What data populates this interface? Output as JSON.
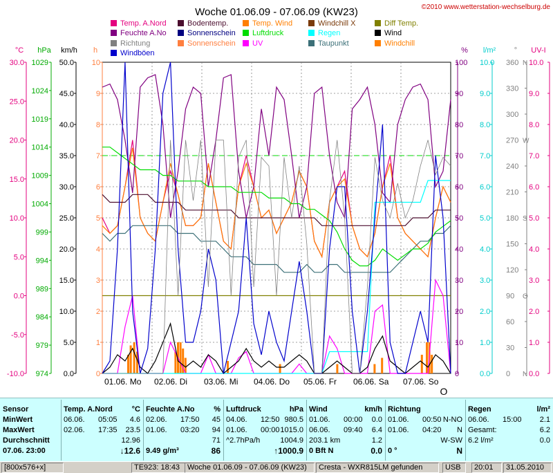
{
  "chart": {
    "title": "Woche 01.06.09 - 07.06.09 (KW23)",
    "copyright": "©2010 www.wetterstation-wechselburg.de",
    "cursor_symbol": "O",
    "legend": [
      {
        "label": "Temp. A.Nord",
        "color": "#e4007f"
      },
      {
        "label": "Bodentemp.",
        "color": "#4b0d2e"
      },
      {
        "label": "Temp. Wind",
        "color": "#ff7f00"
      },
      {
        "label": "Windchill X",
        "color": "#7a3a0a"
      },
      {
        "label": "Diff Temp.",
        "color": "#808000"
      },
      {
        "label": "Feuchte A.No",
        "color": "#800080"
      },
      {
        "label": "Sonnenschein",
        "color": "#000080"
      },
      {
        "label": "Luftdruck",
        "color": "#00dd00"
      },
      {
        "label": "Regen",
        "color": "#00ffff"
      },
      {
        "label": "Wind",
        "color": "#000000"
      },
      {
        "label": "Richtung",
        "color": "#808080"
      },
      {
        "label": "Sonnenschein",
        "color": "#ff7f3f"
      },
      {
        "label": "UV",
        "color": "#ff00ff"
      },
      {
        "label": "Taupunkt",
        "color": "#3c7078"
      },
      {
        "label": "Windchill",
        "color": "#ff7f00"
      },
      {
        "label": "Windböen",
        "color": "#0000cc"
      }
    ],
    "axis_titles": {
      "celsius": "°C",
      "hpa": "hPa",
      "kmh": "km/h",
      "h": "h",
      "percent": "%",
      "lm2": "l/m²",
      "deg": "°",
      "uv": "UV-I"
    },
    "colors": {
      "celsius": "#e4007f",
      "hpa": "#00aa00",
      "kmh": "#000000",
      "h": "#ff7f3f",
      "percent": "#800080",
      "lm2": "#00cccc",
      "deg": "#808080",
      "uv": "#e4007f"
    }
  },
  "chart_data": {
    "type": "line",
    "title": "Woche 01.06.09 - 07.06.09 (KW23)",
    "x_labels": [
      "01.06. Mo",
      "02.06. Di",
      "03.06. Mi",
      "04.06. Do",
      "05.06. Fr",
      "06.06. Sa",
      "07.06. So"
    ],
    "axes": {
      "celsius": {
        "ticks": [
          "30.0",
          "25.0",
          "20.0",
          "15.0",
          "10.0",
          "5.0",
          "0.0",
          "-5.0",
          "-10.0"
        ],
        "range": [
          -10,
          30
        ]
      },
      "hpa": {
        "ticks": [
          "1029",
          "1024",
          "1019",
          "1014",
          "1009",
          "1004",
          "999",
          "994",
          "989",
          "984",
          "979",
          "974"
        ],
        "range": [
          974,
          1029
        ]
      },
      "kmh": {
        "ticks": [
          "50.0",
          "45.0",
          "40.0",
          "35.0",
          "30.0",
          "25.0",
          "20.0",
          "15.0",
          "10.0",
          "5.0",
          "0.0"
        ],
        "range": [
          0,
          50
        ]
      },
      "hours": {
        "ticks": [
          "10",
          "9",
          "8",
          "7",
          "6",
          "5",
          "4",
          "3",
          "2",
          "1",
          "0"
        ],
        "range": [
          0,
          10
        ]
      },
      "percent": {
        "ticks": [
          "100",
          "90",
          "80",
          "70",
          "60",
          "50",
          "40",
          "30",
          "20",
          "10",
          "0"
        ],
        "range": [
          0,
          100
        ]
      },
      "rain": {
        "ticks": [
          "10.0",
          "9.0",
          "8.0",
          "7.0",
          "6.0",
          "5.0",
          "4.0",
          "3.0",
          "2.0",
          "1.0",
          "0.0"
        ],
        "range": [
          0,
          10
        ]
      },
      "direction": {
        "ticks": [
          "360",
          "330",
          "300",
          "270",
          "240",
          "210",
          "180",
          "150",
          "120",
          "90",
          "60",
          "30",
          "0"
        ],
        "letters": [
          "N",
          "",
          "",
          "W",
          "",
          "",
          "S",
          "",
          "",
          "O",
          "",
          "",
          "N"
        ],
        "range": [
          0,
          360
        ]
      },
      "uv": {
        "ticks": [
          "10.0",
          "9.0",
          "8.0",
          "7.0",
          "6.0",
          "5.0",
          "4.0",
          "3.0",
          "2.0",
          "1.0",
          "0.0"
        ],
        "range": [
          0,
          10
        ]
      }
    },
    "series": [
      {
        "name": "Temp. A.Nord",
        "color": "#e4007f",
        "values": [
          10,
          8,
          9,
          14,
          20,
          10,
          8,
          7,
          12,
          16,
          13,
          9,
          9,
          10,
          17,
          12,
          7,
          6,
          14,
          18,
          14,
          10,
          11,
          8,
          10,
          12,
          16,
          14,
          7,
          5,
          12,
          14,
          16,
          9,
          6,
          5,
          8,
          14,
          18,
          10,
          8,
          7,
          6,
          5,
          10,
          14,
          12
        ]
      },
      {
        "name": "Temp. Wind",
        "color": "#ff7f00",
        "values": [
          9,
          8,
          9,
          14,
          19,
          10,
          8,
          7,
          12,
          17,
          13,
          9,
          9,
          10,
          17,
          12,
          7,
          6,
          14,
          17,
          14,
          10,
          11,
          8,
          10,
          12,
          16,
          14,
          7,
          5,
          12,
          14,
          15,
          9,
          6,
          5,
          8,
          14,
          17,
          10,
          8,
          7,
          6,
          5,
          10,
          14,
          12
        ]
      },
      {
        "name": "Taupunkt",
        "color": "#3c7078",
        "values": [
          8,
          7,
          8,
          8,
          9,
          9,
          9,
          9,
          9,
          9,
          8,
          8,
          8,
          7,
          7,
          7,
          6,
          5,
          5,
          5,
          4,
          4,
          4,
          4,
          3,
          3,
          3,
          4,
          3,
          3,
          4,
          4,
          3,
          3,
          3,
          3,
          3,
          3,
          3,
          4,
          5,
          6,
          7,
          7,
          8,
          8,
          9
        ]
      },
      {
        "name": "Feuchte A.No",
        "color": "#800080",
        "values": [
          92,
          93,
          88,
          75,
          58,
          92,
          95,
          96,
          80,
          50,
          65,
          85,
          92,
          90,
          60,
          75,
          95,
          96,
          65,
          50,
          60,
          85,
          70,
          92,
          88,
          70,
          50,
          60,
          90,
          92,
          70,
          55,
          50,
          85,
          88,
          92,
          80,
          58,
          55,
          80,
          88,
          92,
          93,
          88,
          60,
          65,
          88
        ]
      },
      {
        "name": "Luftdruck",
        "color": "#00dd00",
        "values": [
          1014,
          1014,
          1013,
          1012,
          1011,
          1010,
          1010,
          1010,
          1009,
          1009,
          1008,
          1008,
          1008,
          1008,
          1007,
          1007,
          1007,
          1007,
          1006,
          1006,
          1006,
          1006,
          1005,
          1005,
          1005,
          1004,
          1004,
          1003,
          1003,
          1002,
          1001,
          999,
          996,
          994,
          993,
          993,
          994,
          996,
          995,
          994,
          995,
          996,
          996,
          997,
          999,
          1000,
          1001
        ]
      },
      {
        "name": "Bodentemp.",
        "color": "#4b0d2e",
        "values": [
          13,
          12,
          12,
          12,
          13,
          13,
          13,
          12,
          12,
          12,
          12,
          11,
          11,
          11,
          11,
          11,
          11,
          11,
          10,
          10,
          10,
          10,
          10,
          10,
          10,
          10,
          10,
          10,
          10,
          9,
          9,
          9,
          9,
          9,
          9,
          9,
          9,
          9,
          9,
          9,
          9,
          10,
          10,
          10,
          11,
          11,
          11
        ]
      },
      {
        "name": "Diff Temp.",
        "color": "#808000",
        "values": [
          0,
          0,
          0,
          0,
          0,
          0,
          0,
          0,
          0,
          0,
          0,
          0,
          0,
          0,
          0,
          0,
          0,
          0,
          0,
          0,
          0,
          0,
          0,
          0,
          0,
          0,
          0,
          0,
          0,
          0,
          0,
          0,
          0,
          0,
          0,
          0,
          0,
          0,
          0,
          0,
          0,
          0,
          0,
          0,
          0,
          0,
          0
        ]
      },
      {
        "name": "UV",
        "color": "#ff00ff",
        "values": [
          0,
          0,
          0,
          1.5,
          2.5,
          0,
          0,
          0,
          0,
          1.0,
          0.5,
          0,
          0,
          0,
          0.6,
          0,
          0,
          0,
          0.5,
          0.7,
          0,
          0,
          0,
          0,
          0,
          0,
          0.3,
          0,
          0,
          0,
          1.2,
          0.8,
          0,
          0,
          0,
          0,
          2.0,
          2.2,
          0,
          0,
          0,
          0,
          0,
          0,
          3.0,
          2.5,
          0
        ]
      },
      {
        "name": "Regen",
        "color": "#00ffff",
        "values": [
          0,
          0,
          0,
          0,
          0,
          0,
          0,
          0,
          0,
          0,
          0,
          0,
          0,
          0,
          0,
          0,
          0,
          0,
          0,
          0,
          0,
          0,
          0,
          0,
          0,
          0,
          0,
          0,
          0,
          0,
          0.7,
          0.7,
          0.7,
          0.7,
          0.7,
          0.7,
          5.5,
          5.5,
          5.5,
          5.5,
          5.5,
          5.5,
          5.5,
          6.2,
          6.2,
          6.2,
          6.2
        ]
      },
      {
        "name": "Wind",
        "color": "#000000",
        "values": [
          0,
          1,
          3,
          2,
          4,
          1,
          0,
          2,
          5,
          8,
          2,
          1,
          2,
          1,
          3,
          2,
          0,
          1,
          2,
          4,
          2,
          1,
          2,
          1,
          1,
          2,
          3,
          2,
          0,
          0,
          1,
          2,
          1,
          0,
          0,
          1,
          4,
          6,
          2,
          1,
          0,
          1,
          2,
          1,
          3,
          2,
          0
        ]
      },
      {
        "name": "Windböen",
        "color": "#0000cc",
        "values": [
          0,
          2,
          20,
          50,
          10,
          0,
          4,
          20,
          45,
          50,
          20,
          5,
          5,
          10,
          20,
          15,
          0,
          5,
          10,
          25,
          8,
          3,
          10,
          5,
          2,
          10,
          18,
          10,
          0,
          0,
          20,
          30,
          30,
          10,
          0,
          10,
          25,
          40,
          5,
          0,
          0,
          5,
          10,
          5,
          35,
          25,
          0
        ]
      },
      {
        "name": "Richtung",
        "color": "#808080",
        "values": [
          0,
          0,
          0,
          0,
          0,
          0,
          0,
          0,
          0,
          270,
          90,
          270,
          200,
          270,
          100,
          270,
          270,
          90,
          250,
          270,
          100,
          250,
          240,
          90,
          250,
          180,
          240,
          150,
          0,
          0,
          200,
          270,
          180,
          0,
          0,
          100,
          250,
          200,
          180,
          220,
          180,
          200,
          240,
          270,
          230,
          250,
          240
        ]
      }
    ],
    "sun_bars": [
      {
        "at": 0.5,
        "h": 0.6
      },
      {
        "at": 0.55,
        "h": 0.9
      },
      {
        "at": 0.62,
        "h": 1.0
      },
      {
        "at": 0.68,
        "h": 0.7
      },
      {
        "at": 1.45,
        "h": 0.7
      },
      {
        "at": 1.5,
        "h": 1.0
      },
      {
        "at": 1.55,
        "h": 1.0
      },
      {
        "at": 1.6,
        "h": 0.8
      },
      {
        "at": 1.65,
        "h": 0.5
      },
      {
        "at": 2.5,
        "h": 0.4
      },
      {
        "at": 3.55,
        "h": 0.3
      },
      {
        "at": 4.7,
        "h": 0.3
      },
      {
        "at": 5.45,
        "h": 0.3
      },
      {
        "at": 5.6,
        "h": 0.5
      },
      {
        "at": 6.4,
        "h": 0.6
      },
      {
        "at": 6.5,
        "h": 1.0
      },
      {
        "at": 6.55,
        "h": 1.0
      },
      {
        "at": 6.6,
        "h": 0.6
      }
    ],
    "reference_line_kmh": 35
  },
  "summary": {
    "columns": [
      {
        "title": "Sensor",
        "unit": "",
        "rows": [
          {
            "label": "MinWert"
          },
          {
            "label": "MaxWert"
          },
          {
            "label": "Durchschnitt"
          },
          {
            "label": "07.06. 23:00"
          }
        ]
      },
      {
        "title": "Temp. A.Nord",
        "unit": "°C",
        "rows": [
          {
            "date": "06.06.",
            "time": "05:05",
            "val": "4.6"
          },
          {
            "date": "02.06.",
            "time": "17:35",
            "val": "23.5"
          },
          {
            "date": "",
            "time": "",
            "val": "12.96"
          },
          {
            "date": "",
            "time": "",
            "val": "↓12.6"
          }
        ]
      },
      {
        "title": "Feuchte A.No",
        "unit": "%",
        "rows": [
          {
            "date": "02.06.",
            "time": "17:50",
            "val": "45"
          },
          {
            "date": "01.06.",
            "time": "03:20",
            "val": "94"
          },
          {
            "date": "",
            "time": "",
            "val": "71"
          },
          {
            "date": "9.49 g/m³",
            "time": "",
            "val": "86"
          }
        ]
      },
      {
        "title": "Luftdruck",
        "unit": "hPa",
        "rows": [
          {
            "date": "04.06.",
            "time": "12:50",
            "val": "980.5"
          },
          {
            "date": "01.06.",
            "time": "00:00",
            "val": "1015.0"
          },
          {
            "date": "^2.7hPa/h",
            "time": "",
            "val": "1004.9"
          },
          {
            "date": "",
            "time": "",
            "val": "↑1000.9"
          }
        ]
      },
      {
        "title": "Wind",
        "unit": "km/h",
        "rows": [
          {
            "date": "01.06.",
            "time": "00:00",
            "val": "0.0"
          },
          {
            "date": "06.06.",
            "time": "09:40",
            "val": "6.4"
          },
          {
            "date": "203.1 km",
            "time": "",
            "val": "1.2"
          },
          {
            "date": "0 Bft N",
            "time": "",
            "val": "0.0"
          }
        ]
      },
      {
        "title": "Richtung",
        "unit": "",
        "rows": [
          {
            "date": "01.06.",
            "time": "00:50",
            "val": "N-NO"
          },
          {
            "date": "01.06.",
            "time": "04:20",
            "val": "N"
          },
          {
            "date": "",
            "time": "",
            "val": "W-SW"
          },
          {
            "date": "0 °",
            "time": "",
            "val": "N"
          }
        ]
      },
      {
        "title": "Regen",
        "unit": "l/m²",
        "rows": [
          {
            "date": "06.06.",
            "time": "15:00",
            "val": "2.1"
          },
          {
            "date": "Gesamt:",
            "time": "",
            "val": "6.2"
          },
          {
            "date": "6.2 l/m²",
            "time": "",
            "val": "0.0"
          }
        ]
      }
    ]
  },
  "status": {
    "resolution": "[800x576+x]",
    "sensor_time": "TE923: 18:43",
    "week": "Woche 01.06.09 - 07.06.09 (KW23)",
    "device": "Cresta - WXR815LM gefunden",
    "port": "USB",
    "time": "20:01",
    "date": "31.05.2010"
  }
}
